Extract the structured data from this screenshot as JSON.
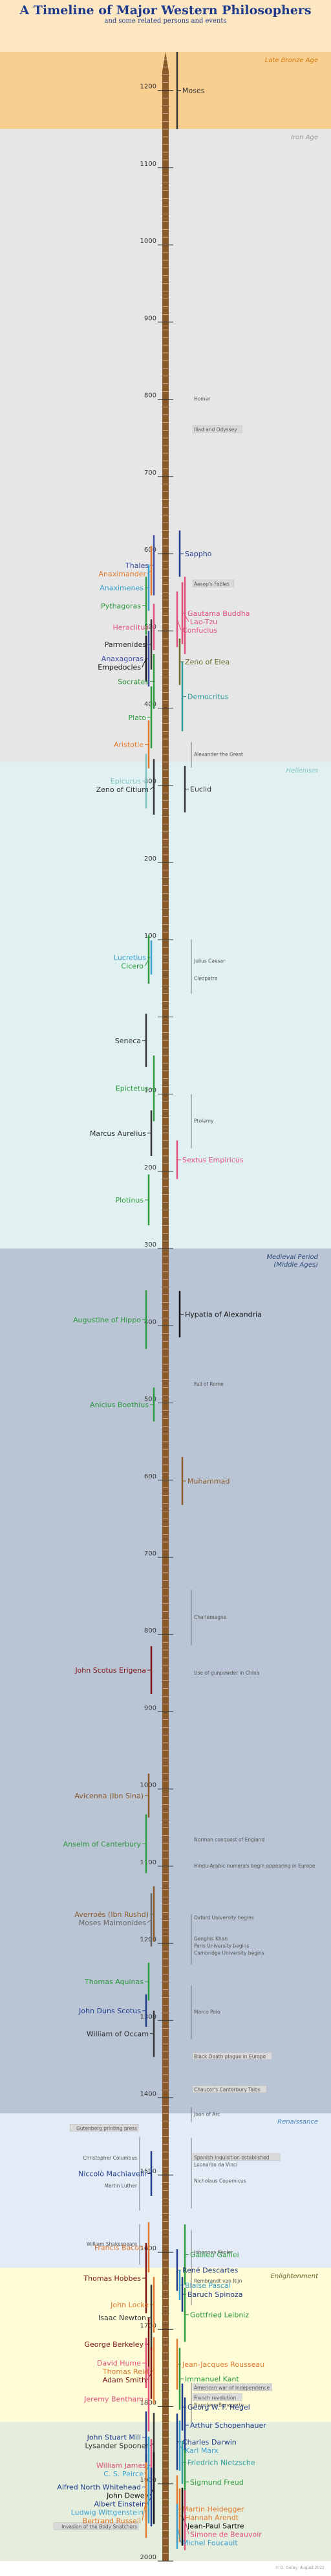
{
  "title": "A Timeline of Major Western Philosophers",
  "subtitle": "and some related persons and events",
  "credit": "© D. Gorey, August 2022",
  "axis_color": "#8B5A2B",
  "chart_data": {
    "type": "timeline",
    "x_axis": "year",
    "ylim": [
      -1250,
      2000
    ],
    "tick_labels": [
      {
        "year": -1200,
        "label": "1200"
      },
      {
        "year": -1100,
        "label": "1100"
      },
      {
        "year": -1000,
        "label": "1000"
      },
      {
        "year": -900,
        "label": "900"
      },
      {
        "year": -800,
        "label": "800"
      },
      {
        "year": -700,
        "label": "700"
      },
      {
        "year": -600,
        "label": "600"
      },
      {
        "year": -500,
        "label": "500"
      },
      {
        "year": -400,
        "label": "400"
      },
      {
        "year": -300,
        "label": "300"
      },
      {
        "year": -200,
        "label": "200"
      },
      {
        "year": -100,
        "label": "100"
      },
      {
        "year": 0,
        "label": ""
      },
      {
        "year": 100,
        "label": "100"
      },
      {
        "year": 200,
        "label": "200"
      },
      {
        "year": 300,
        "label": "300"
      },
      {
        "year": 400,
        "label": "400"
      },
      {
        "year": 500,
        "label": "500"
      },
      {
        "year": 600,
        "label": "600"
      },
      {
        "year": 700,
        "label": "700"
      },
      {
        "year": 800,
        "label": "800"
      },
      {
        "year": 900,
        "label": "900"
      },
      {
        "year": 1000,
        "label": "1000"
      },
      {
        "year": 1100,
        "label": "1100"
      },
      {
        "year": 1200,
        "label": "1200"
      },
      {
        "year": 1300,
        "label": "1300"
      },
      {
        "year": 1400,
        "label": "1400"
      },
      {
        "year": 1500,
        "label": "1500"
      },
      {
        "year": 1600,
        "label": "1600"
      },
      {
        "year": 1700,
        "label": "1700"
      },
      {
        "year": 1800,
        "label": "1800"
      },
      {
        "year": 1900,
        "label": "1900"
      },
      {
        "year": 2000,
        "label": "2000"
      }
    ],
    "eras": [
      {
        "name": "Late Bronze Age",
        "start": -1250,
        "end": -1150,
        "color": "#f8cf90",
        "label_color": "#d07a10"
      },
      {
        "name": "Iron Age",
        "start": -1150,
        "end": -330,
        "color": "#e6e6e6",
        "label_color": "#999999"
      },
      {
        "name": "Hellenism",
        "start": -330,
        "end": 300,
        "color": "#e1f0f1",
        "label_color": "#7fc3c3"
      },
      {
        "name": "Medieval Period\n(Middle Ages)",
        "start": 300,
        "end": 1420,
        "color": "#b9c4d4",
        "label_color": "#2f4a7c"
      },
      {
        "name": "Renaissance",
        "start": 1420,
        "end": 1620,
        "color": "#e3ecf6",
        "label_color": "#4a88c4"
      },
      {
        "name": "Enlightenment",
        "start": 1620,
        "end": 1820,
        "color": "#fdfcd6",
        "label_color": "#6b6b2b"
      },
      {
        "name": "",
        "start": 1820,
        "end": 2000,
        "color": "#e5eedd",
        "label_color": "#444444"
      }
    ],
    "left_persons": [
      {
        "name": "Thales",
        "born": -624,
        "died": -546,
        "color": "#3d4ea0"
      },
      {
        "name": "Anaximander",
        "born": -610,
        "died": -546,
        "color": "#e07a2e"
      },
      {
        "name": "Anaximenes",
        "born": -586,
        "died": -526,
        "color": "#3aa0d0"
      },
      {
        "name": "Pythagoras",
        "born": -570,
        "died": -495,
        "color": "#2e9a3e"
      },
      {
        "name": "Heraclitus",
        "born": -535,
        "died": -475,
        "color": "#e0507a"
      },
      {
        "name": "Parmenides",
        "born": -515,
        "died": -450,
        "color": "#333333"
      },
      {
        "name": "Anaxagoras",
        "born": -500,
        "died": -428,
        "color": "#3d4ea0"
      },
      {
        "name": "Empedocles",
        "born": -494,
        "died": -434,
        "color": "#111111"
      },
      {
        "name": "Socrates",
        "born": -470,
        "died": -399,
        "color": "#2e9a3e"
      },
      {
        "name": "Plato",
        "born": -428,
        "died": -348,
        "color": "#2e9a3e"
      },
      {
        "name": "Aristotle",
        "born": -384,
        "died": -322,
        "color": "#e07a2e"
      },
      {
        "name": "Epicurus",
        "born": -341,
        "died": -270,
        "color": "#7fc3c3"
      },
      {
        "name": "Zeno of Citium",
        "born": -334,
        "died": -262,
        "color": "#333333"
      },
      {
        "name": "Lucretius",
        "born": -99,
        "died": -55,
        "color": "#3aa0d0"
      },
      {
        "name": "Cicero",
        "born": -106,
        "died": -43,
        "color": "#2e9a3e"
      },
      {
        "name": "Seneca",
        "born": -4,
        "died": 65,
        "color": "#333333"
      },
      {
        "name": "Epictetus",
        "born": 50,
        "died": 135,
        "color": "#2e9a3e"
      },
      {
        "name": "Marcus Aurelius",
        "born": 121,
        "died": 180,
        "color": "#333333"
      },
      {
        "name": "Plotinus",
        "born": 204,
        "died": 270,
        "color": "#2e9a3e"
      },
      {
        "name": "Augustine of Hippo",
        "born": 354,
        "died": 430,
        "color": "#2e9a3e"
      },
      {
        "name": "Anicius Boethius",
        "born": 480,
        "died": 524,
        "color": "#2e9a3e"
      },
      {
        "name": "John Scotus Erigena",
        "born": 815,
        "died": 877,
        "color": "#7a1010"
      },
      {
        "name": "Avicenna (Ibn Sina)",
        "born": 980,
        "died": 1037,
        "color": "#8B5A2B"
      },
      {
        "name": "Anselm of Canterbury",
        "born": 1033,
        "died": 1109,
        "color": "#2e9a3e"
      },
      {
        "name": "Averroës (Ibn Rushd)",
        "born": 1126,
        "died": 1198,
        "color": "#8B5A2B"
      },
      {
        "name": "Moses Maimonides",
        "born": 1135,
        "died": 1204,
        "color": "#666666"
      },
      {
        "name": "Thomas Aquinas",
        "born": 1225,
        "died": 1274,
        "color": "#2e9a3e"
      },
      {
        "name": "John Duns Scotus",
        "born": 1266,
        "died": 1308,
        "color": "#1f3a8a"
      },
      {
        "name": "William of Occam",
        "born": 1287,
        "died": 1347,
        "color": "#333333"
      },
      {
        "name": "Niccolò Machiavelli",
        "born": 1469,
        "died": 1527,
        "color": "#1f3a8a"
      },
      {
        "name": "Francis Bacon",
        "born": 1561,
        "died": 1626,
        "color": "#e07a2e"
      },
      {
        "name": "Thomas Hobbes",
        "born": 1588,
        "died": 1679,
        "color": "#7a1010"
      },
      {
        "name": "John Locke",
        "born": 1632,
        "died": 1704,
        "color": "#e07a2e"
      },
      {
        "name": "Isaac Newton",
        "born": 1642,
        "died": 1727,
        "color": "#333333"
      },
      {
        "name": "George Berkeley",
        "born": 1685,
        "died": 1753,
        "color": "#7a1010"
      },
      {
        "name": "Thomas Reid",
        "born": 1710,
        "died": 1796,
        "color": "#e07a2e"
      },
      {
        "name": "David Hume",
        "born": 1711,
        "died": 1776,
        "color": "#e0507a"
      },
      {
        "name": "Adam Smith",
        "born": 1723,
        "died": 1790,
        "color": "#7a1010"
      },
      {
        "name": "Jeremy Bentham",
        "born": 1748,
        "died": 1832,
        "color": "#e0507a"
      },
      {
        "name": "John Stuart Mill",
        "born": 1806,
        "died": 1873,
        "color": "#1f3a8a"
      },
      {
        "name": "Lysander Spooner",
        "born": 1808,
        "died": 1887,
        "color": "#333333"
      },
      {
        "name": "C. S. Peirce",
        "born": 1839,
        "died": 1914,
        "color": "#3aa0d0"
      },
      {
        "name": "William James",
        "born": 1842,
        "died": 1910,
        "color": "#e0507a"
      },
      {
        "name": "John Dewey",
        "born": 1859,
        "died": 1952,
        "color": "#111111"
      },
      {
        "name": "Alfred North Whitehead",
        "born": 1861,
        "died": 1947,
        "color": "#1f3a8a"
      },
      {
        "name": "Bertrand Russell",
        "born": 1872,
        "died": 1970,
        "color": "#e07a2e"
      },
      {
        "name": "Albert Einstein",
        "born": 1879,
        "died": 1955,
        "color": "#1f3a8a"
      },
      {
        "name": "Ludwig Wittgenstein",
        "born": 1889,
        "died": 1951,
        "color": "#3aa0d0"
      }
    ],
    "right_persons": [
      {
        "name": "Moses",
        "born": -1250,
        "died": -1150,
        "color": "#333333"
      },
      {
        "name": "Sappho",
        "born": -630,
        "died": -570,
        "color": "#1f3a8a"
      },
      {
        "name": "Gautama Buddha",
        "born": -563,
        "died": -483,
        "color": "#e0507a"
      },
      {
        "name": "Lao-Tzu",
        "born": -570,
        "died": -470,
        "color": "#e0507a"
      },
      {
        "name": "Confucius",
        "born": -551,
        "died": -479,
        "color": "#e0507a"
      },
      {
        "name": "Zeno of Elea",
        "born": -490,
        "died": -430,
        "color": "#6b6b2b"
      },
      {
        "name": "Democritus",
        "born": -460,
        "died": -370,
        "color": "#2e9a9a"
      },
      {
        "name": "Euclid",
        "born": -325,
        "died": -265,
        "color": "#333333"
      },
      {
        "name": "Sextus Empiricus",
        "born": 160,
        "died": 210,
        "color": "#e0507a"
      },
      {
        "name": "Hypatia of Alexandria",
        "born": 355,
        "died": 415,
        "color": "#111111"
      },
      {
        "name": "Muhammad",
        "born": 570,
        "died": 632,
        "color": "#8B5A2B"
      },
      {
        "name": "Galileo Galilei",
        "born": 1564,
        "died": 1642,
        "color": "#2e9a3e"
      },
      {
        "name": "René Descartes",
        "born": 1596,
        "died": 1650,
        "color": "#1f3a8a"
      },
      {
        "name": "Blaise Pascal",
        "born": 1623,
        "died": 1662,
        "color": "#3aa0d0"
      },
      {
        "name": "Baruch Spinoza",
        "born": 1632,
        "died": 1677,
        "color": "#1f3a8a"
      },
      {
        "name": "Gottfried Leibniz",
        "born": 1646,
        "died": 1716,
        "color": "#2e9a3e"
      },
      {
        "name": "Jean-Jacques Rousseau",
        "born": 1712,
        "died": 1778,
        "color": "#e07a2e"
      },
      {
        "name": "Immanuel Kant",
        "born": 1724,
        "died": 1804,
        "color": "#2e9a3e"
      },
      {
        "name": "Georg W. F. Hegel",
        "born": 1770,
        "died": 1831,
        "color": "#1f3a8a"
      },
      {
        "name": "Arthur Schopenhauer",
        "born": 1788,
        "died": 1860,
        "color": "#1f3a8a"
      },
      {
        "name": "Charles Darwin",
        "born": 1809,
        "died": 1882,
        "color": "#1f3a8a"
      },
      {
        "name": "Karl Marx",
        "born": 1818,
        "died": 1883,
        "color": "#3aa0d0"
      },
      {
        "name": "Friedrich Nietzsche",
        "born": 1844,
        "died": 1900,
        "color": "#2e9a9a"
      },
      {
        "name": "Sigmund Freud",
        "born": 1856,
        "died": 1939,
        "color": "#2e9a3e"
      },
      {
        "name": "Martin Heidegger",
        "born": 1889,
        "died": 1976,
        "color": "#e07a2e"
      },
      {
        "name": "Jean-Paul Sartre",
        "born": 1905,
        "died": 1980,
        "color": "#111111"
      },
      {
        "name": "Simone de Beauvoir",
        "born": 1908,
        "died": 1986,
        "color": "#e0507a"
      },
      {
        "name": "Hannah Arendt",
        "born": 1906,
        "died": 1975,
        "color": "#e07a2e"
      },
      {
        "name": "Michel Foucault",
        "born": 1926,
        "died": 1984,
        "color": "#3aa0d0"
      }
    ],
    "left_minor": [
      {
        "name": "Gutenberg printing press",
        "year": 1440,
        "boxed": true
      },
      {
        "name": "Christopher Columbus",
        "born": 1451,
        "died": 1506
      },
      {
        "name": "Martin Luther",
        "born": 1483,
        "died": 1546
      },
      {
        "name": "William Shakespeare",
        "born": 1564,
        "died": 1616
      },
      {
        "name": "Invasion of the Body Snatchers",
        "year": 1956,
        "boxed": true
      }
    ],
    "right_minor": [
      {
        "name": "Homer",
        "year": -800
      },
      {
        "name": "Iliad and Odyssey",
        "year": -760,
        "boxed": true
      },
      {
        "name": "Aesop's Fables",
        "year": -560,
        "boxed": true
      },
      {
        "name": "Alexander the Great",
        "born": -356,
        "died": -323
      },
      {
        "name": "Julius Caesar",
        "born": -100,
        "died": -44
      },
      {
        "name": "Cleopatra",
        "born": -69,
        "died": -30
      },
      {
        "name": "Ptolemy",
        "born": 100,
        "died": 170
      },
      {
        "name": "Fall of Rome",
        "year": 476
      },
      {
        "name": "Charlemagne",
        "born": 742,
        "died": 814
      },
      {
        "name": "Use of gunpowder in China",
        "year": 850
      },
      {
        "name": "Norman conquest of England",
        "year": 1066
      },
      {
        "name": "Hindu-Arabic numerals begin appearing in Europe",
        "year": 1100
      },
      {
        "name": "Oxford University begins",
        "year": 1167
      },
      {
        "name": "Paris University begins",
        "year": 1200
      },
      {
        "name": "Genghis Khan",
        "born": 1162,
        "died": 1227
      },
      {
        "name": "Cambridge University begins",
        "year": 1209
      },
      {
        "name": "Marco Polo",
        "born": 1254,
        "died": 1324
      },
      {
        "name": "Black Death plague in Europe",
        "year": 1347,
        "boxed": true
      },
      {
        "name": "Chaucer's Canterbury Tales",
        "year": 1390,
        "boxed": true
      },
      {
        "name": "Joan of Arc",
        "born": 1412,
        "died": 1431
      },
      {
        "name": "Spanish Inquisition established",
        "year": 1478,
        "boxed": true
      },
      {
        "name": "Leonardo da Vinci",
        "born": 1452,
        "died": 1519
      },
      {
        "name": "Nicholaus Copernicus",
        "born": 1473,
        "died": 1543
      },
      {
        "name": "Johannes Kepler",
        "born": 1571,
        "died": 1630
      },
      {
        "name": "Rembrandt van Rijn",
        "born": 1606,
        "died": 1669
      },
      {
        "name": "American war of independence",
        "year": 1776,
        "boxed": true
      },
      {
        "name": "French revolution",
        "year": 1789,
        "boxed": true
      },
      {
        "name": "Napoleon Bonaparte",
        "born": 1769,
        "died": 1821
      }
    ]
  }
}
